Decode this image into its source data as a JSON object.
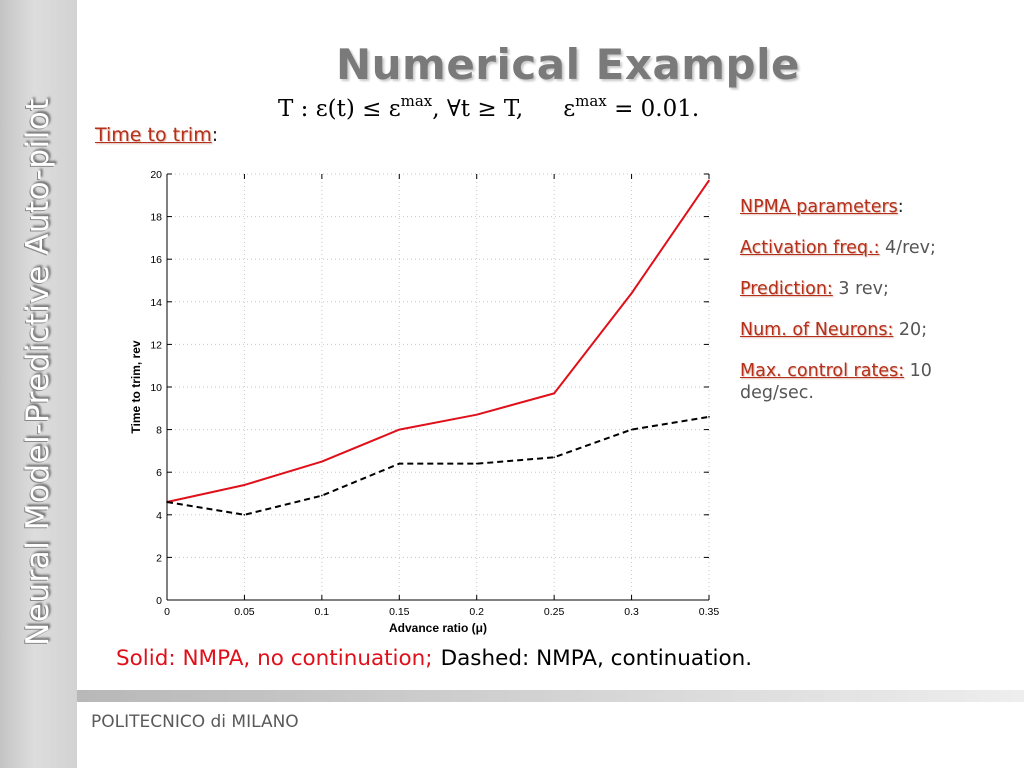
{
  "sidebar": {
    "title": "Neural Model-Predictive Auto-pilot"
  },
  "slide": {
    "title": "Numerical Example",
    "formula": {
      "lhs": "T : ε(t) ≤ ε",
      "sup1": "max",
      "mid": ", ∀t ≥ T,",
      "rhs": "ε",
      "sup2": "max",
      "rhs_end": " = 0.01."
    },
    "subtitle": "Time to trim",
    "subtitle_colon": ":"
  },
  "params": {
    "header": "NPMA parameters",
    "header_colon": ":",
    "activation_label": "Activation freq.:",
    "activation_value": " 4/rev;",
    "prediction_label": "Prediction:",
    "prediction_value": " 3 rev;",
    "neurons_label": "Num. of Neurons:",
    "neurons_value": " 20;",
    "rates_label": "Max. control rates:",
    "rates_value": " 10 deg/sec."
  },
  "legend_note": {
    "solid": "Solid: NMPA, no continuation;",
    "dashed": "Dashed: NMPA, continuation."
  },
  "footer": {
    "institution": "POLITECNICO di MILANO"
  },
  "colors": {
    "accent": "#b5301a",
    "solid_series": "#e0101a",
    "dashed_series": "#000000"
  },
  "chart_data": {
    "type": "line",
    "xlabel": "Advance ratio (μ)",
    "ylabel": "Time to trim, rev",
    "xlim": [
      0,
      0.35
    ],
    "ylim": [
      0,
      20
    ],
    "xticks": [
      "0",
      "0.05",
      "0.1",
      "0.15",
      "0.2",
      "0.25",
      "0.3",
      "0.35"
    ],
    "yticks": [
      "0",
      "2",
      "4",
      "6",
      "8",
      "10",
      "12",
      "14",
      "16",
      "18",
      "20"
    ],
    "grid": true,
    "x": [
      0,
      0.05,
      0.1,
      0.15,
      0.2,
      0.25,
      0.3,
      0.35
    ],
    "series": [
      {
        "style": "solid",
        "color": "#e0101a",
        "values": [
          4.6,
          5.4,
          6.5,
          8.0,
          8.7,
          9.7,
          14.4,
          19.7
        ]
      },
      {
        "style": "dashed",
        "color": "#000000",
        "values": [
          4.6,
          4.0,
          4.9,
          6.4,
          6.4,
          6.7,
          8.0,
          8.6
        ]
      }
    ]
  }
}
